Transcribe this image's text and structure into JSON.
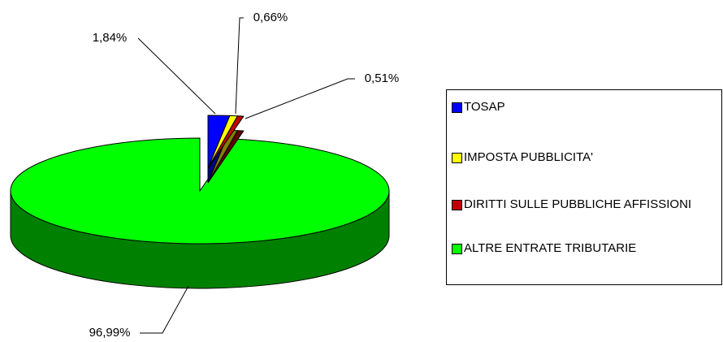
{
  "chart_data": {
    "type": "pie",
    "categories": [
      "TOSAP",
      "IMPOSTA PUBBLICITA'",
      "DIRITTI SULLE PUBBLICHE AFFISSIONI",
      "ALTRE ENTRATE TRIBUTARIE"
    ],
    "values": [
      1.84,
      0.66,
      0.51,
      96.99
    ],
    "value_labels": [
      "1,84%",
      "0,66%",
      "0,51%",
      "96,99%"
    ],
    "colors": [
      "#0000ff",
      "#ffff00",
      "#c00000",
      "#00ff00"
    ],
    "legend": "right"
  }
}
